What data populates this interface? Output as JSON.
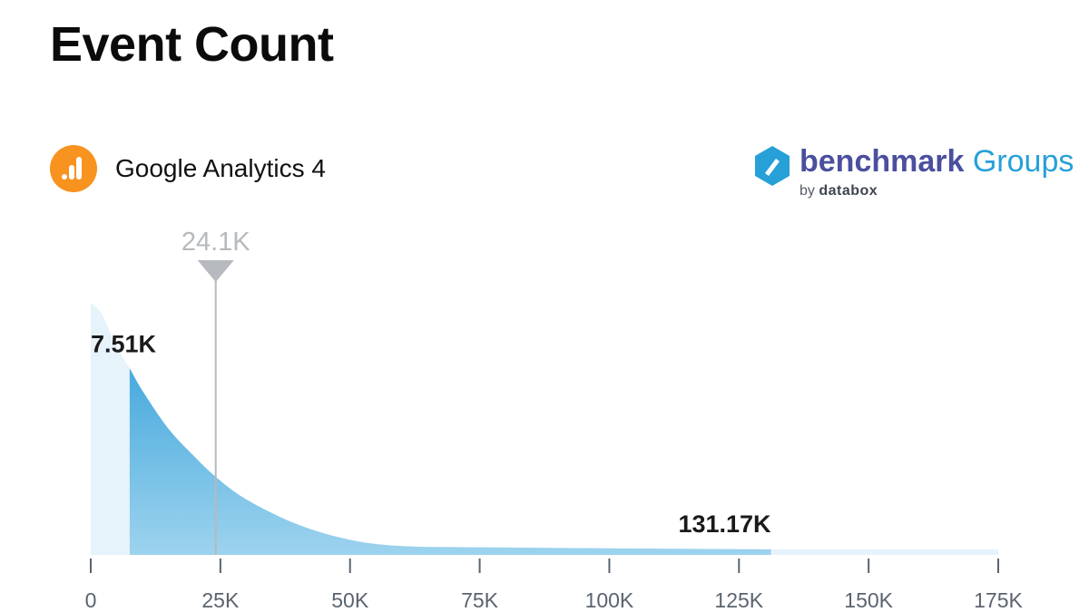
{
  "title": "Event Count",
  "source": {
    "name": "Google Analytics 4",
    "icon": "google-analytics-icon",
    "icon_color": "#F7931E"
  },
  "brand": {
    "name_bold": "benchmark",
    "name_light": " Groups",
    "by": "by",
    "by_name": "databox",
    "icon": "databox-logo-icon"
  },
  "chart_data": {
    "type": "area",
    "subtype": "distribution",
    "x_range": [
      0,
      175000
    ],
    "x_ticks": [
      0,
      25000,
      50000,
      75000,
      100000,
      125000,
      150000,
      175000
    ],
    "x_tick_labels": [
      "0",
      "25K",
      "50K",
      "75K",
      "100K",
      "125K",
      "150K",
      "175K"
    ],
    "curve": {
      "x": [
        0,
        2000,
        4000,
        6000,
        7510,
        10000,
        15000,
        20000,
        24100,
        30000,
        40000,
        50000,
        60000,
        75000,
        100000,
        131170,
        150000,
        175000
      ],
      "density": [
        1.0,
        0.96,
        0.87,
        0.79,
        0.74,
        0.65,
        0.5,
        0.39,
        0.31,
        0.22,
        0.12,
        0.06,
        0.035,
        0.03,
        0.026,
        0.022,
        0.022,
        0.022
      ]
    },
    "range_low": 7510,
    "range_low_label": "7.51K",
    "range_high": 131170,
    "range_high_label": "131.17K",
    "median": 24100,
    "median_label": "24.1K",
    "colors": {
      "outside": "#e6f3fb",
      "range_top": "#2a9bd7",
      "range_bottom": "#9dd3ee",
      "median": "#b6b9bd",
      "axis": "#5a6470"
    }
  }
}
